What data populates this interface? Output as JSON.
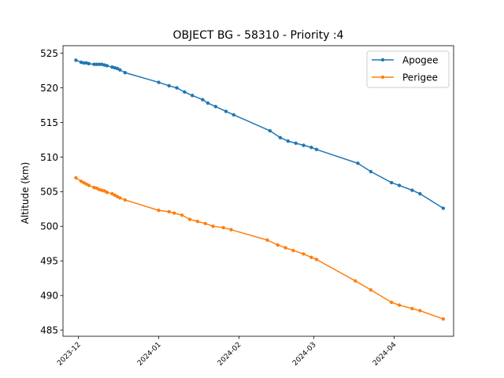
{
  "chart_data": {
    "type": "line",
    "title": "OBJECT BG - 58310 - Priority :4",
    "xlabel": "",
    "ylabel": "Altitude (km)",
    "xlim": [
      "2023-11-25",
      "2024-04-24"
    ],
    "ylim": [
      484.1,
      526.1
    ],
    "x_ticks": [
      "2023-12",
      "2024-01",
      "2024-02",
      "2024-03",
      "2024-04"
    ],
    "y_ticks": [
      485,
      490,
      495,
      500,
      505,
      510,
      515,
      520,
      525
    ],
    "grid": false,
    "legend_position": "top-right",
    "series": [
      {
        "name": "Apogee",
        "color": "#1f77b4",
        "points": [
          [
            "2023-11-30",
            524.0
          ],
          [
            "2023-12-02",
            523.7
          ],
          [
            "2023-12-03",
            523.6
          ],
          [
            "2023-12-04",
            523.6
          ],
          [
            "2023-12-05",
            523.5
          ],
          [
            "2023-12-07",
            523.4
          ],
          [
            "2023-12-08",
            523.4
          ],
          [
            "2023-12-09",
            523.4
          ],
          [
            "2023-12-10",
            523.4
          ],
          [
            "2023-12-11",
            523.3
          ],
          [
            "2023-12-12",
            523.2
          ],
          [
            "2023-12-14",
            523.0
          ],
          [
            "2023-12-15",
            522.9
          ],
          [
            "2023-12-16",
            522.8
          ],
          [
            "2023-12-17",
            522.6
          ],
          [
            "2023-12-19",
            522.2
          ],
          [
            "2024-01-01",
            520.8
          ],
          [
            "2024-01-05",
            520.3
          ],
          [
            "2024-01-08",
            520.0
          ],
          [
            "2024-01-11",
            519.4
          ],
          [
            "2024-01-14",
            518.9
          ],
          [
            "2024-01-18",
            518.3
          ],
          [
            "2024-01-20",
            517.8
          ],
          [
            "2024-01-23",
            517.3
          ],
          [
            "2024-01-27",
            516.6
          ],
          [
            "2024-01-30",
            516.1
          ],
          [
            "2024-02-13",
            513.8
          ],
          [
            "2024-02-17",
            512.8
          ],
          [
            "2024-02-20",
            512.3
          ],
          [
            "2024-02-23",
            512.0
          ],
          [
            "2024-02-26",
            511.7
          ],
          [
            "2024-02-29",
            511.4
          ],
          [
            "2024-03-02",
            511.1
          ],
          [
            "2024-03-18",
            509.1
          ],
          [
            "2024-03-23",
            507.9
          ],
          [
            "2024-03-31",
            506.3
          ],
          [
            "2024-04-03",
            505.9
          ],
          [
            "2024-04-08",
            505.2
          ],
          [
            "2024-04-11",
            504.7
          ],
          [
            "2024-04-20",
            502.6
          ]
        ]
      },
      {
        "name": "Perigee",
        "color": "#ff7f0e",
        "points": [
          [
            "2023-11-30",
            507.0
          ],
          [
            "2023-12-02",
            506.5
          ],
          [
            "2023-12-03",
            506.3
          ],
          [
            "2023-12-04",
            506.1
          ],
          [
            "2023-12-05",
            505.9
          ],
          [
            "2023-12-07",
            505.6
          ],
          [
            "2023-12-08",
            505.5
          ],
          [
            "2023-12-09",
            505.3
          ],
          [
            "2023-12-10",
            505.2
          ],
          [
            "2023-12-11",
            505.1
          ],
          [
            "2023-12-12",
            504.9
          ],
          [
            "2023-12-14",
            504.7
          ],
          [
            "2023-12-15",
            504.5
          ],
          [
            "2023-12-16",
            504.3
          ],
          [
            "2023-12-17",
            504.1
          ],
          [
            "2023-12-19",
            503.8
          ],
          [
            "2024-01-01",
            502.3
          ],
          [
            "2024-01-05",
            502.1
          ],
          [
            "2024-01-07",
            501.9
          ],
          [
            "2024-01-10",
            501.6
          ],
          [
            "2024-01-13",
            501.0
          ],
          [
            "2024-01-16",
            500.7
          ],
          [
            "2024-01-19",
            500.4
          ],
          [
            "2024-01-22",
            500.0
          ],
          [
            "2024-01-26",
            499.8
          ],
          [
            "2024-01-29",
            499.5
          ],
          [
            "2024-02-12",
            498.0
          ],
          [
            "2024-02-16",
            497.3
          ],
          [
            "2024-02-19",
            496.9
          ],
          [
            "2024-02-22",
            496.5
          ],
          [
            "2024-02-26",
            496.0
          ],
          [
            "2024-02-29",
            495.5
          ],
          [
            "2024-03-02",
            495.2
          ],
          [
            "2024-03-17",
            492.1
          ],
          [
            "2024-03-23",
            490.8
          ],
          [
            "2024-03-31",
            489.0
          ],
          [
            "2024-04-03",
            488.6
          ],
          [
            "2024-04-08",
            488.1
          ],
          [
            "2024-04-11",
            487.8
          ],
          [
            "2024-04-20",
            486.6
          ]
        ]
      }
    ]
  }
}
